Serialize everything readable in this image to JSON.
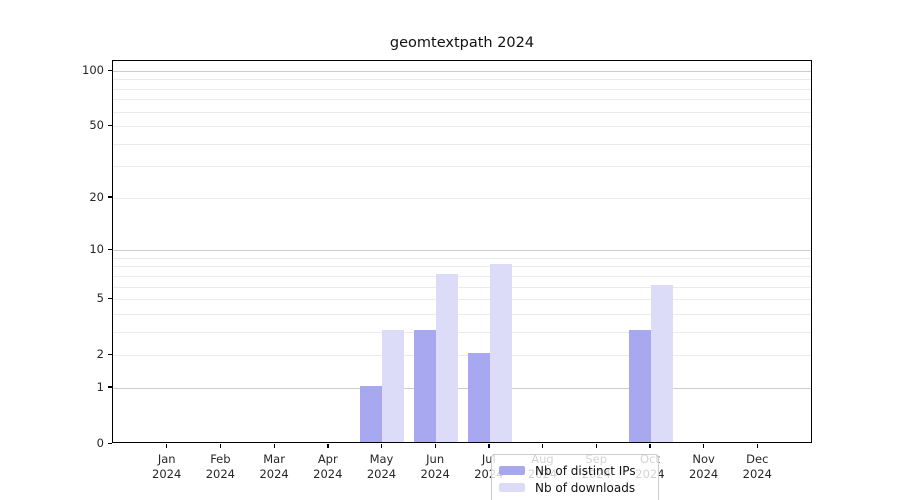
{
  "title": "geomtextpath 2024",
  "chart_data": {
    "type": "bar",
    "title": "geomtextpath 2024",
    "x_categories": [
      "Jan",
      "Feb",
      "Mar",
      "Apr",
      "May",
      "Jun",
      "Jul",
      "Aug",
      "Sep",
      "Oct",
      "Nov",
      "Dec"
    ],
    "x_year_label": "2024",
    "series": [
      {
        "name": "Nb of distinct IPs",
        "color": "#a8a8f0",
        "values": [
          0,
          0,
          0,
          0,
          1,
          3,
          2,
          0,
          0,
          3,
          0,
          0
        ]
      },
      {
        "name": "Nb of downloads",
        "color": "#dcdcf8",
        "values": [
          0,
          0,
          0,
          0,
          3,
          7,
          8,
          0,
          0,
          6,
          0,
          0
        ]
      }
    ],
    "y_ticks": [
      0,
      1,
      2,
      5,
      10,
      20,
      50,
      100
    ],
    "y_tick_labels": [
      "0",
      "1",
      "2",
      "5",
      "10",
      "20",
      "50",
      "100"
    ],
    "y_scale": "log1p",
    "ylim": [
      0,
      113
    ],
    "grid": "horizontal",
    "grid_minor_values": [
      2,
      3,
      4,
      5,
      6,
      7,
      8,
      9,
      20,
      30,
      40,
      50,
      60,
      70,
      80,
      90
    ],
    "grid_major_values": [
      1,
      10,
      100
    ],
    "legend_position": "inside-bottom-center"
  },
  "legend": {
    "items": [
      {
        "label": "Nb of distinct IPs",
        "color": "#a8a8f0"
      },
      {
        "label": "Nb of downloads",
        "color": "#dcdcf8"
      }
    ]
  },
  "colors": {
    "axis": "#000000",
    "grid_major": "#cccccc",
    "grid_minor": "#ebebeb",
    "text": "#262626",
    "background": "#ffffff"
  }
}
